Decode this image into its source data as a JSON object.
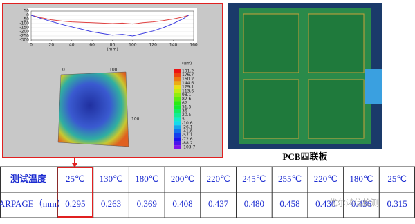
{
  "chart_data": {
    "type": "line",
    "x": [
      0,
      10,
      20,
      30,
      40,
      50,
      60,
      70,
      80,
      90,
      100,
      110,
      120,
      130,
      140,
      150,
      155
    ],
    "series": [
      {
        "color": "#e04040",
        "values": [
          0,
          -30,
          -55,
          -70,
          -80,
          -85,
          -90,
          -95,
          -100,
          -95,
          -105,
          -90,
          -80,
          -65,
          -45,
          -20,
          0
        ]
      },
      {
        "color": "#3a3ae0",
        "values": [
          0,
          -40,
          -75,
          -110,
          -140,
          -170,
          -200,
          -220,
          -240,
          -230,
          -250,
          -220,
          -190,
          -150,
          -100,
          -40,
          0
        ]
      }
    ],
    "xlim": [
      0,
      160
    ],
    "ylim": [
      -300,
      50
    ],
    "xticks": [
      0,
      20,
      40,
      60,
      80,
      100,
      120,
      140,
      160
    ],
    "yticks": [
      50,
      0,
      -50,
      -100,
      -150,
      -200,
      -250,
      -300
    ],
    "x_label": "(mm)"
  },
  "color_scale": {
    "unit": "(um)",
    "labels": [
      191.2,
      176.7,
      160.2,
      144.6,
      129.1,
      113.6,
      98.1,
      82.6,
      67,
      51.5,
      36,
      20.5,
      5,
      -10.6,
      -26.1,
      -41.6,
      -57.1,
      -72.6,
      -88.2,
      -103.7
    ]
  },
  "map_axes": {
    "top_left": "0",
    "top_right": "100",
    "side": "100"
  },
  "caption": "PCB四联板",
  "table": {
    "row_headers": [
      "测试温度",
      "WARPAGE（mm）"
    ],
    "temperatures": [
      "25℃",
      "130℃",
      "180℃",
      "200℃",
      "220℃",
      "245℃",
      "255℃",
      "220℃",
      "180℃",
      "25℃"
    ],
    "warpage": [
      "0.295",
      "0.263",
      "0.369",
      "0.408",
      "0.437",
      "0.480",
      "0.458",
      "0.430",
      "0.436",
      "0.315"
    ]
  },
  "watermark": "优尔鸿信检测"
}
